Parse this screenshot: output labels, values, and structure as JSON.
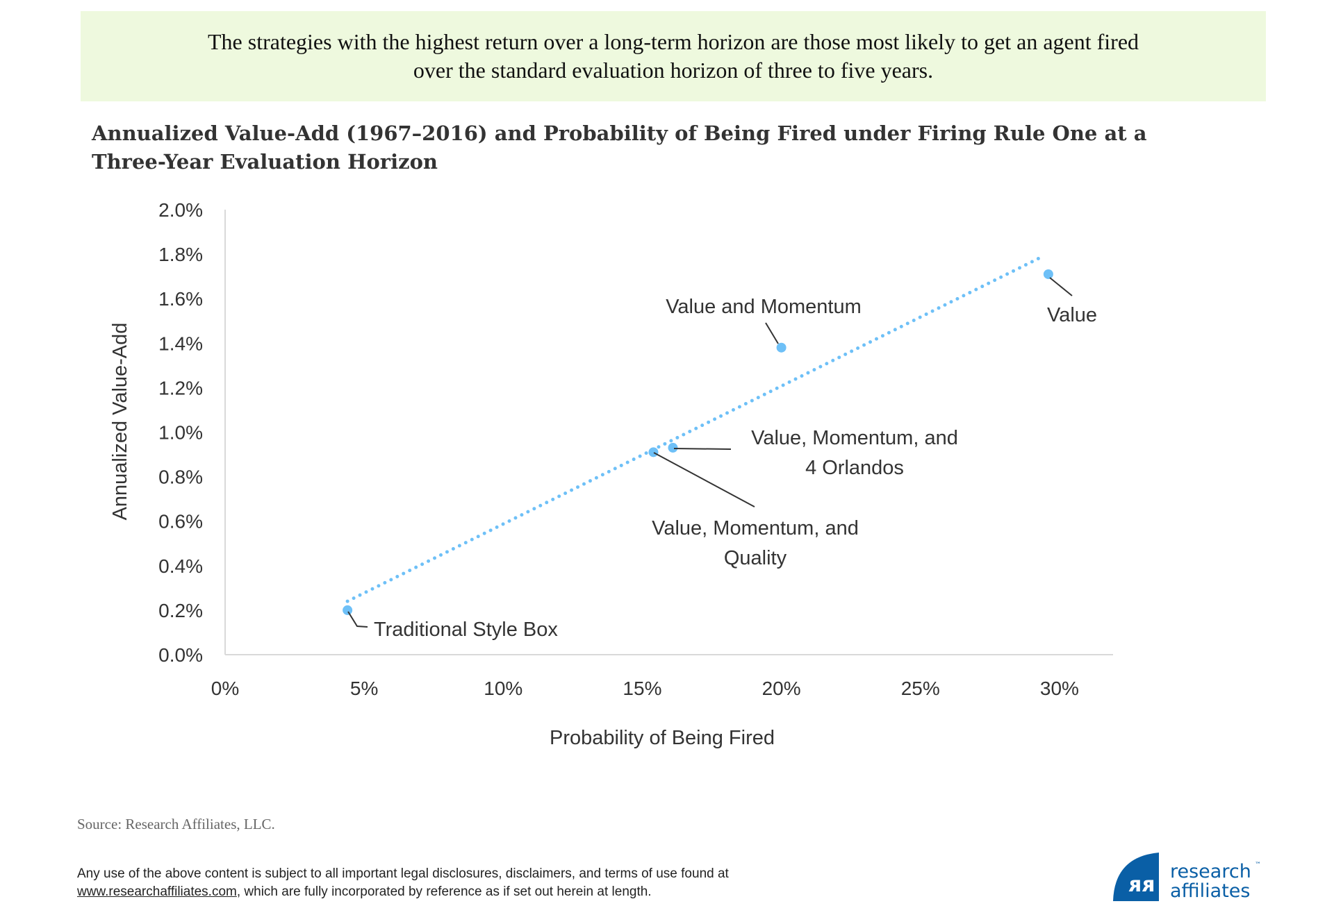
{
  "banner": {
    "line1": "The strategies with the highest return over a long-term horizon are those most likely to get an agent fired",
    "line2": "over the standard evaluation horizon of three to five years."
  },
  "chart_data": {
    "type": "scatter",
    "title_line1": "Annualized Value-Add (1967–2016) and Probability of Being Fired under Firing Rule One at a",
    "title_line2": "Three-Year Evaluation Horizon",
    "xlabel": "Probability of Being Fired",
    "ylabel": "Annualized Value-Add",
    "xlim": [
      0,
      32
    ],
    "ylim": [
      0,
      2.0
    ],
    "x_ticks": [
      "0%",
      "5%",
      "10%",
      "15%",
      "20%",
      "25%",
      "30%"
    ],
    "y_ticks": [
      "0.0%",
      "0.2%",
      "0.4%",
      "0.6%",
      "0.8%",
      "1.0%",
      "1.2%",
      "1.4%",
      "1.6%",
      "1.8%",
      "2.0%"
    ],
    "grid": false,
    "points": [
      {
        "label": "Traditional Style Box",
        "x": 4.4,
        "y": 0.2
      },
      {
        "label": "Value, Momentum, and Quality",
        "x": 15.4,
        "y": 0.91
      },
      {
        "label": "Value, Momentum, and 4 Orlandos",
        "x": 16.1,
        "y": 0.93
      },
      {
        "label": "Value and Momentum",
        "x": 20.0,
        "y": 1.38
      },
      {
        "label": "Value",
        "x": 29.6,
        "y": 1.71
      }
    ],
    "trendline": {
      "style": "dotted",
      "x": [
        4.4,
        29.4
      ],
      "y": [
        0.24,
        1.79
      ]
    },
    "point_color": "#6ec0f7",
    "label_lines": {
      "tsb": [
        "Traditional Style Box"
      ],
      "vmq": [
        "Value, Momentum, and",
        "Quality"
      ],
      "vm4o": [
        "Value, Momentum, and",
        "4 Orlandos"
      ],
      "vm": [
        "Value and Momentum"
      ],
      "v": [
        "Value"
      ]
    }
  },
  "source": "Source: Research Affiliates, LLC.",
  "disclaimer": {
    "line1": "Any use of the above content is subject to all important legal disclosures, disclaimers, and terms of use found at",
    "link": "www.researchaffiliates.com",
    "line2_rest": ", which are fully incorporated by reference as if set out herein at length."
  },
  "logo": {
    "line1": "research",
    "line2": "affiliates",
    "tm": "™",
    "color": "#0a5fa6"
  }
}
